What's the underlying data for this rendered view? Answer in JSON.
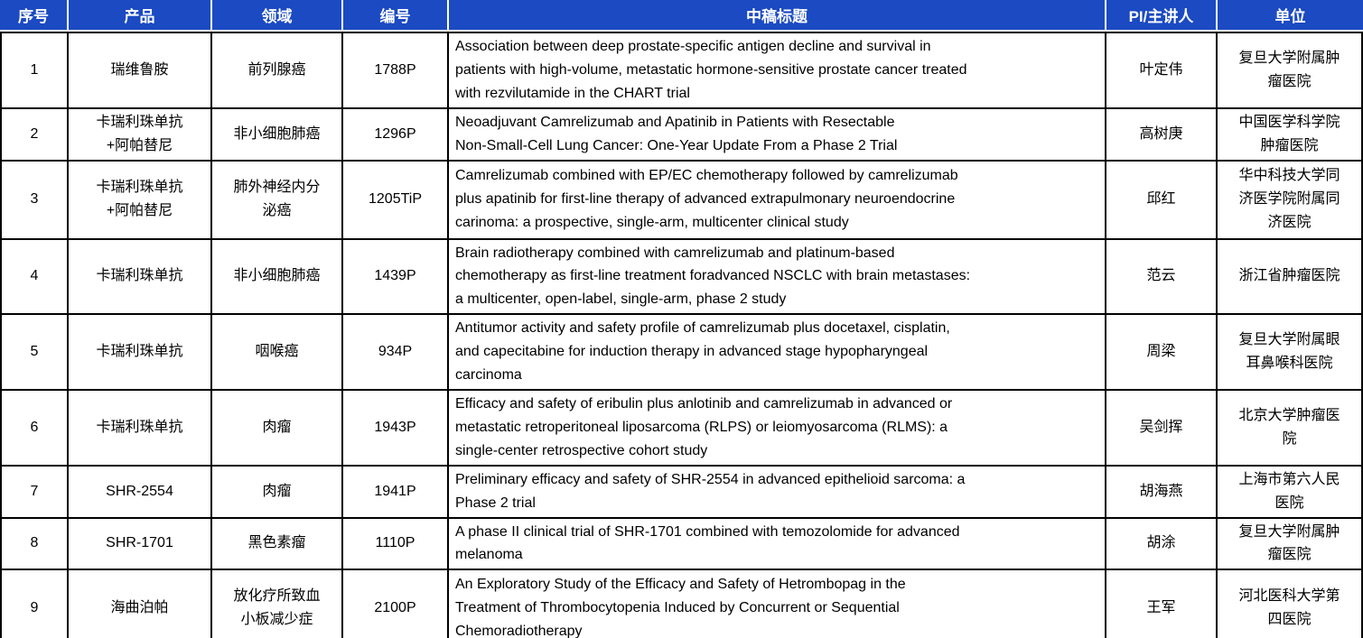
{
  "colors": {
    "header_bg": "#1b4ac2",
    "header_text": "#ffffff",
    "grid_border": "#000000",
    "body_bg": "#ffffff"
  },
  "table": {
    "columns": [
      {
        "key": "index",
        "label": "序号"
      },
      {
        "key": "product",
        "label": "产品"
      },
      {
        "key": "field",
        "label": "领域"
      },
      {
        "key": "code",
        "label": "编号"
      },
      {
        "key": "title",
        "label": "中稿标题"
      },
      {
        "key": "pi",
        "label": "PI/主讲人"
      },
      {
        "key": "unit",
        "label": "单位"
      }
    ],
    "rows": [
      {
        "index": "1",
        "product": "瑞维鲁胺",
        "field": "前列腺癌",
        "code": "1788P",
        "title": "Association between deep prostate-specific antigen decline and survival in\npatients with high-volume, metastatic hormone-sensitive prostate cancer treated\nwith rezvilutamide in the CHART trial",
        "pi": "叶定伟",
        "unit": "复旦大学附属肿\n瘤医院"
      },
      {
        "index": "2",
        "product": "卡瑞利珠单抗\n+阿帕替尼",
        "field": "非小细胞肺癌",
        "code": "1296P",
        "title": "Neoadjuvant Camrelizumab and Apatinib in Patients with Resectable\nNon-Small-Cell Lung Cancer: One-Year Update From a Phase 2 Trial",
        "pi": "高树庚",
        "unit": "中国医学科学院\n肿瘤医院"
      },
      {
        "index": "3",
        "product": "卡瑞利珠单抗\n+阿帕替尼",
        "field": "肺外神经内分\n泌癌",
        "code": "1205TiP",
        "title": "Camrelizumab combined with EP/EC chemotherapy followed by camrelizumab\nplus apatinib for first-line therapy of advanced extrapulmonary neuroendocrine\ncarinoma: a prospective, single-arm, multicenter clinical study",
        "pi": "邱红",
        "unit": "华中科技大学同\n济医学院附属同\n济医院"
      },
      {
        "index": "4",
        "product": "卡瑞利珠单抗",
        "field": "非小细胞肺癌",
        "code": "1439P",
        "title": "Brain radiotherapy combined with camrelizumab and platinum-based\nchemotherapy as first-line treatment foradvanced NSCLC with brain metastases:\na multicenter, open-label, single-arm, phase 2 study",
        "pi": "范云",
        "unit": "浙江省肿瘤医院"
      },
      {
        "index": "5",
        "product": "卡瑞利珠单抗",
        "field": "咽喉癌",
        "code": "934P",
        "title": "Antitumor activity and safety profile of camrelizumab plus docetaxel, cisplatin,\nand capecitabine for induction therapy in advanced stage hypopharyngeal\ncarcinoma",
        "pi": "周梁",
        "unit": "复旦大学附属眼\n耳鼻喉科医院"
      },
      {
        "index": "6",
        "product": "卡瑞利珠单抗",
        "field": "肉瘤",
        "code": "1943P",
        "title": "Efficacy and safety of eribulin plus anlotinib and camrelizumab in advanced or\nmetastatic retroperitoneal liposarcoma (RLPS) or leiomyosarcoma (RLMS): a\nsingle-center retrospective cohort study",
        "pi": "吴剑挥",
        "unit": "北京大学肿瘤医\n院"
      },
      {
        "index": "7",
        "product": "SHR-2554",
        "field": "肉瘤",
        "code": "1941P",
        "title": "Preliminary efficacy and safety of SHR-2554 in advanced epithelioid sarcoma: a\nPhase 2 trial",
        "pi": "胡海燕",
        "unit": "上海市第六人民\n医院"
      },
      {
        "index": "8",
        "product": "SHR-1701",
        "field": "黑色素瘤",
        "code": "1110P",
        "title": "A phase II clinical trial of SHR-1701 combined with temozolomide for advanced\nmelanoma",
        "pi": "胡涂",
        "unit": "复旦大学附属肿\n瘤医院"
      },
      {
        "index": "9",
        "product": "海曲泊帕",
        "field": "放化疗所致血\n小板减少症",
        "code": "2100P",
        "title": "An Exploratory Study of the Efficacy and Safety of Hetrombopag in the\nTreatment of Thrombocytopenia Induced by Concurrent or Sequential\nChemoradiotherapy",
        "pi": "王军",
        "unit": "河北医科大学第\n四医院"
      }
    ]
  }
}
